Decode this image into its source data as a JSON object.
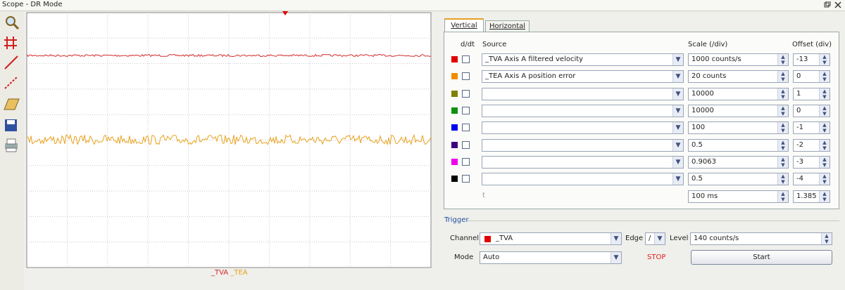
{
  "window": {
    "title": "Scope - DR Mode"
  },
  "plot": {
    "legend": [
      {
        "label": "_TVA",
        "color": "#d42a2a"
      },
      {
        "label": "_TEA",
        "color": "#e8a21e"
      }
    ]
  },
  "tabs": [
    "Vertical",
    "Horizontal"
  ],
  "vertical": {
    "headers": {
      "ddt": "d/dt",
      "source": "Source",
      "scale": "Scale (/div)",
      "offset": "Offset (div)"
    },
    "channels": [
      {
        "color": "#e00000",
        "source": "_TVA Axis A filtered velocity",
        "scale": "1000 counts/s",
        "offset": "-13"
      },
      {
        "color": "#f08c00",
        "source": "_TEA Axis A position error",
        "scale": "20 counts",
        "offset": "0"
      },
      {
        "color": "#808000",
        "scale": "10000",
        "offset": "1"
      },
      {
        "color": "#109010",
        "scale": "10000",
        "offset": "0"
      },
      {
        "color": "#0000ee",
        "scale": "100",
        "offset": "-1"
      },
      {
        "color": "#400080",
        "scale": "0.5",
        "offset": "-2"
      },
      {
        "color": "#ee00ee",
        "scale": "0.9063",
        "offset": "-3"
      },
      {
        "color": "#000000",
        "scale": "0.5",
        "offset": "-4"
      }
    ],
    "time": {
      "label": "t",
      "scale": "100 ms",
      "offset": "1.385"
    }
  },
  "trigger": {
    "title": "Trigger",
    "channel_label": "Channel",
    "channel": "_TVA",
    "channel_color": "#e00000",
    "edge_label": "Edge",
    "edge": "/",
    "level_label": "Level",
    "level": "140 counts/s",
    "mode_label": "Mode",
    "mode": "Auto",
    "status": "STOP",
    "start": "Start"
  }
}
